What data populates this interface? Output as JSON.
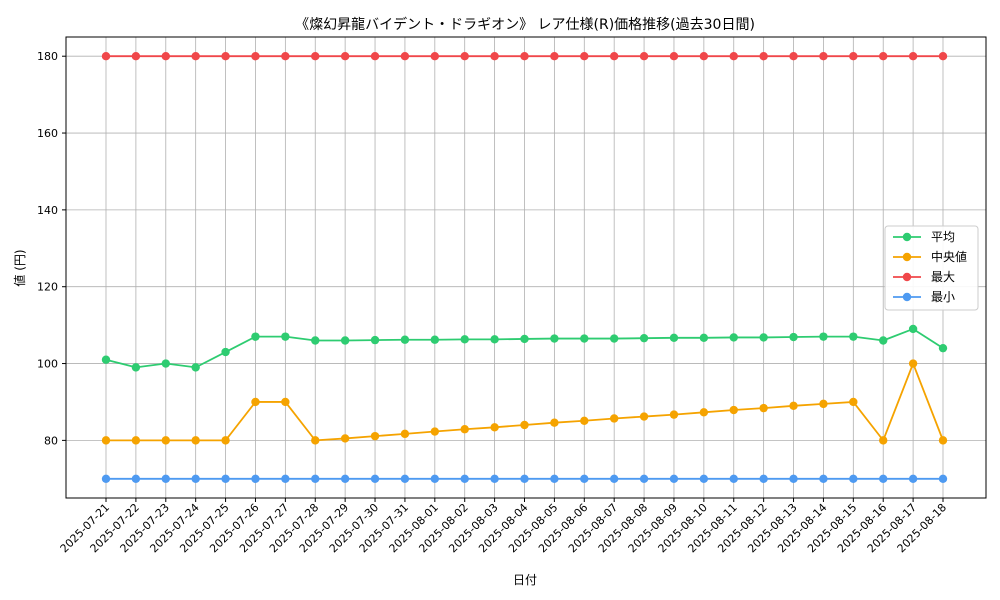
{
  "chart_data": {
    "type": "line",
    "title": "《燦幻昇龍バイデント・ドラギオン》 レア仕様(R)価格推移(過去30日間)",
    "xlabel": "日付",
    "ylabel": "値 (円)",
    "ylim": [
      65,
      185
    ],
    "yticks": [
      80,
      100,
      120,
      140,
      160,
      180
    ],
    "grid": true,
    "legend_position": "center-right",
    "categories": [
      "2025-07-21",
      "2025-07-22",
      "2025-07-23",
      "2025-07-24",
      "2025-07-25",
      "2025-07-26",
      "2025-07-27",
      "2025-07-28",
      "2025-07-29",
      "2025-07-30",
      "2025-07-31",
      "2025-08-01",
      "2025-08-02",
      "2025-08-03",
      "2025-08-04",
      "2025-08-05",
      "2025-08-06",
      "2025-08-07",
      "2025-08-08",
      "2025-08-09",
      "2025-08-10",
      "2025-08-11",
      "2025-08-12",
      "2025-08-13",
      "2025-08-14",
      "2025-08-15",
      "2025-08-16",
      "2025-08-17",
      "2025-08-18"
    ],
    "series": [
      {
        "name": "平均",
        "color": "#2ecc71",
        "values": [
          101,
          99,
          100,
          99,
          103,
          107,
          107,
          106,
          106,
          106.1,
          106.2,
          106.2,
          106.3,
          106.3,
          106.4,
          106.5,
          106.5,
          106.5,
          106.6,
          106.7,
          106.7,
          106.8,
          106.8,
          106.9,
          107,
          107,
          106,
          109,
          104
        ]
      },
      {
        "name": "中央値",
        "color": "#f5a300",
        "values": [
          80,
          80,
          80,
          80,
          80,
          90,
          90,
          80,
          80.5,
          81.1,
          81.7,
          82.3,
          82.9,
          83.4,
          84,
          84.6,
          85.1,
          85.7,
          86.2,
          86.7,
          87.3,
          87.9,
          88.4,
          89,
          89.5,
          90,
          80,
          100,
          80
        ]
      },
      {
        "name": "最大",
        "color": "#f0474a",
        "values": [
          180,
          180,
          180,
          180,
          180,
          180,
          180,
          180,
          180,
          180,
          180,
          180,
          180,
          180,
          180,
          180,
          180,
          180,
          180,
          180,
          180,
          180,
          180,
          180,
          180,
          180,
          180,
          180,
          180
        ]
      },
      {
        "name": "最小",
        "color": "#4e9af1",
        "values": [
          70,
          70,
          70,
          70,
          70,
          70,
          70,
          70,
          70,
          70,
          70,
          70,
          70,
          70,
          70,
          70,
          70,
          70,
          70,
          70,
          70,
          70,
          70,
          70,
          70,
          70,
          70,
          70,
          70
        ]
      }
    ]
  }
}
